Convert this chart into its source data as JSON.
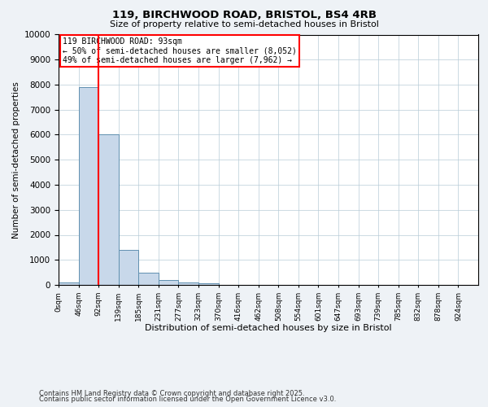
{
  "title_line1": "119, BIRCHWOOD ROAD, BRISTOL, BS4 4RB",
  "title_line2": "Size of property relative to semi-detached houses in Bristol",
  "xlabel": "Distribution of semi-detached houses by size in Bristol",
  "ylabel": "Number of semi-detached properties",
  "bar_color": "#c8d8ea",
  "bar_edge_color": "#6090b0",
  "red_line_x": 2,
  "annotation_title": "119 BIRCHWOOD ROAD: 93sqm",
  "annotation_line1": "← 50% of semi-detached houses are smaller (8,052)",
  "annotation_line2": "49% of semi-detached houses are larger (7,962) →",
  "bin_labels": [
    "0sqm",
    "46sqm",
    "92sqm",
    "139sqm",
    "185sqm",
    "231sqm",
    "277sqm",
    "323sqm",
    "370sqm",
    "416sqm",
    "462sqm",
    "508sqm",
    "554sqm",
    "601sqm",
    "647sqm",
    "693sqm",
    "739sqm",
    "785sqm",
    "832sqm",
    "878sqm",
    "924sqm"
  ],
  "bar_heights": [
    110,
    7900,
    6000,
    1400,
    500,
    200,
    100,
    60,
    5,
    2,
    1,
    1,
    0,
    0,
    0,
    0,
    0,
    0,
    0,
    0,
    0
  ],
  "ylim": [
    0,
    10000
  ],
  "yticks": [
    0,
    1000,
    2000,
    3000,
    4000,
    5000,
    6000,
    7000,
    8000,
    9000,
    10000
  ],
  "footer_line1": "Contains HM Land Registry data © Crown copyright and database right 2025.",
  "footer_line2": "Contains public sector information licensed under the Open Government Licence v3.0.",
  "background_color": "#eef2f6",
  "plot_bg_color": "#ffffff"
}
